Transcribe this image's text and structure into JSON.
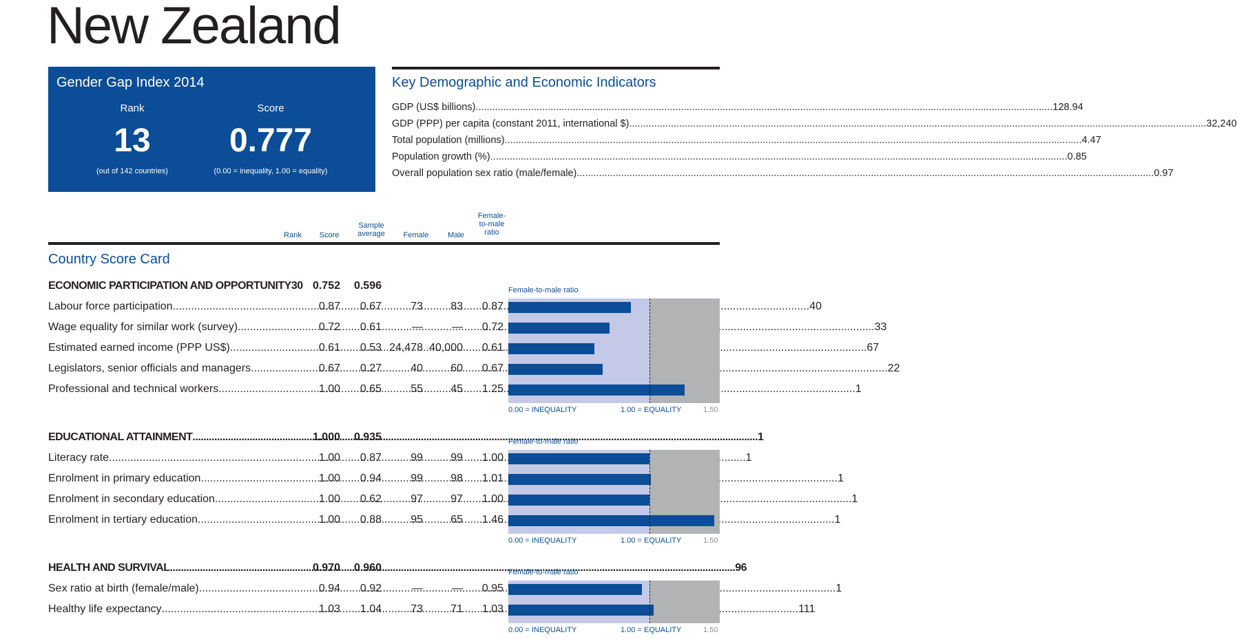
{
  "country": "New Zealand",
  "ggi": {
    "title": "Gender Gap Index 2014",
    "rank_label": "Rank",
    "score_label": "Score",
    "rank": "13",
    "score": "0.777",
    "rank_note": "(out of 142 countries)",
    "score_note": "(0.00 = inequality, 1.00 = equality)"
  },
  "indicators": {
    "title": "Key Demographic and Economic Indicators",
    "rows": [
      {
        "label": "GDP (US$ billions)",
        "value": "128.94"
      },
      {
        "label": "GDP (PPP) per capita (constant 2011, international $)",
        "value": "32,240"
      },
      {
        "label": "Total population (millions)",
        "value": "4.47"
      },
      {
        "label": "Population growth (%)",
        "value": "0.85"
      },
      {
        "label": "Overall population sex ratio (male/female)",
        "value": "0.97"
      }
    ]
  },
  "columns": {
    "rank": "Rank",
    "score": "Score",
    "sample_1": "Sample",
    "sample_2": "average",
    "female": "Female",
    "male": "Male",
    "ratio_1": "Female-",
    "ratio_2": "to-male",
    "ratio_3": "ratio"
  },
  "scorecard_title": "Country Score Card",
  "chart_axis": {
    "title": "Female-to-male ratio",
    "min_label": "0.00 = INEQUALITY",
    "eq_label": "1.00 = EQUALITY",
    "max_label": "1.50"
  },
  "sections": [
    {
      "title": "ECONOMIC PARTICIPATION AND OPPORTUNITY",
      "rank": "30",
      "score": "0.752",
      "avg": "0.596",
      "rows": [
        {
          "label": "Labour force participation",
          "rank": "40",
          "score": "0.87",
          "avg": "0.67",
          "female": "73",
          "male": "83",
          "ratio": "0.87"
        },
        {
          "label": "Wage equality for similar work (survey)",
          "rank": "33",
          "score": "0.72",
          "avg": "0.61",
          "female": "—",
          "male": "—",
          "ratio": "0.72"
        },
        {
          "label": "Estimated earned income (PPP US$)",
          "rank": "67",
          "score": "0.61",
          "avg": "0.53",
          "female": "24,478",
          "male": "40,000",
          "ratio": "0.61"
        },
        {
          "label": "Legislators, senior officials and managers",
          "rank": "22",
          "score": "0.67",
          "avg": "0.27",
          "female": "40",
          "male": "60",
          "ratio": "0.67"
        },
        {
          "label": "Professional and technical workers",
          "rank": "1",
          "score": "1.00",
          "avg": "0.65",
          "female": "55",
          "male": "45",
          "ratio": "1.25"
        }
      ]
    },
    {
      "title": "EDUCATIONAL ATTAINMENT",
      "rank": "1",
      "score": "1.000",
      "avg": "0.935",
      "rows": [
        {
          "label": "Literacy rate",
          "rank": "1",
          "score": "1.00",
          "avg": "0.87",
          "female": "99",
          "male": "99",
          "ratio": "1.00"
        },
        {
          "label": "Enrolment in primary education",
          "rank": "1",
          "score": "1.00",
          "avg": "0.94",
          "female": "99",
          "male": "98",
          "ratio": "1.01"
        },
        {
          "label": "Enrolment in secondary education",
          "rank": "1",
          "score": "1.00",
          "avg": "0.62",
          "female": "97",
          "male": "97",
          "ratio": "1.00"
        },
        {
          "label": "Enrolment in tertiary education",
          "rank": "1",
          "score": "1.00",
          "avg": "0.88",
          "female": "95",
          "male": "65",
          "ratio": "1.46"
        }
      ]
    },
    {
      "title": "HEALTH AND SURVIVAL",
      "rank": "96",
      "score": "0.970",
      "avg": "0.960",
      "rows": [
        {
          "label": "Sex ratio at birth (female/male)",
          "rank": "1",
          "score": "0.94",
          "avg": "0.92",
          "female": "—",
          "male": "—",
          "ratio": "0.95"
        },
        {
          "label": "Healthy life expectancy",
          "rank": "111",
          "score": "1.03",
          "avg": "1.04",
          "female": "73",
          "male": "71",
          "ratio": "1.03"
        }
      ]
    }
  ],
  "colors": {
    "accent": "#0b4d96",
    "bar_light": "#c3c9e6",
    "bar_grey": "#b2b3b5"
  }
}
